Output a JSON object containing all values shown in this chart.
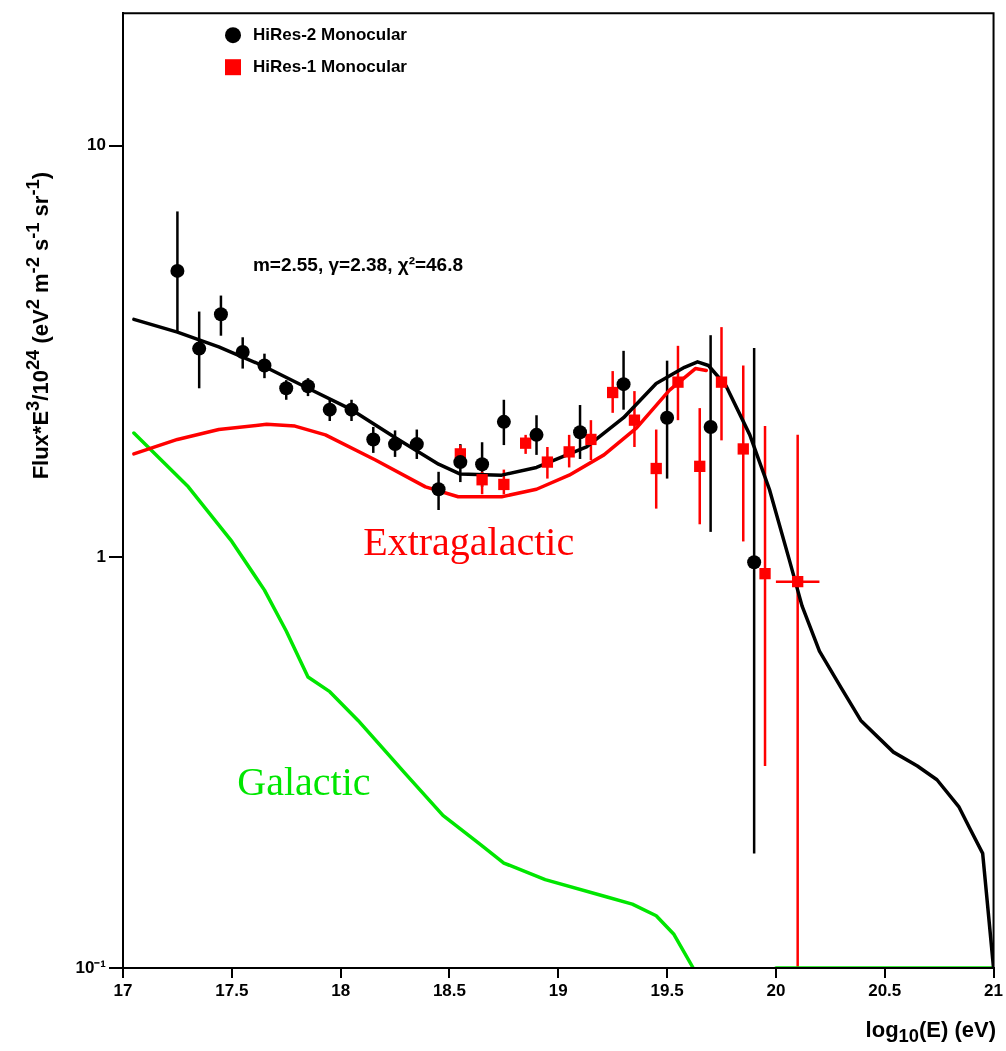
{
  "chart_data": {
    "type": "scatter",
    "xlabel": "log$_{10}$(E) (eV)",
    "ylabel": "Flux*E$^{3}$/10$^{24}$ (eV$^{2}$ m$^{-2}$ s$^{-1}$ sr$^{-1}$)",
    "log": "y",
    "xlim": [
      17,
      21
    ],
    "ylim": [
      0.1,
      21
    ],
    "xticks": [
      17,
      17.5,
      18,
      18.5,
      19,
      19.5,
      20,
      20.5,
      21
    ],
    "yticks": [
      {
        "value": 0.1,
        "label": "10⁻¹"
      },
      1,
      10
    ],
    "legend": "top left",
    "annotations": [
      "m=2.55, γ=2.38, χ²=46.8"
    ],
    "series": [
      {
        "name": "HiRes-2 Monocular",
        "marker": "circle",
        "color": "#000000",
        "x": [
          17.25,
          17.35,
          17.45,
          17.55,
          17.65,
          17.75,
          17.85,
          17.95,
          18.05,
          18.15,
          18.25,
          18.35,
          18.45,
          18.55,
          18.65,
          18.75,
          18.9,
          19.1,
          19.3,
          19.5,
          19.7,
          19.9
        ],
        "values": [
          4.96,
          3.21,
          3.89,
          3.15,
          2.92,
          2.57,
          2.6,
          2.28,
          2.28,
          1.93,
          1.88,
          1.88,
          1.46,
          1.7,
          1.68,
          2.13,
          1.98,
          2.01,
          2.63,
          2.18,
          2.07,
          0.97
        ],
        "errors": [
          [
            3.54,
            6.92
          ],
          [
            2.57,
            3.95
          ],
          [
            3.45,
            4.32
          ],
          [
            2.87,
            3.42
          ],
          [
            2.72,
            3.12
          ],
          [
            2.41,
            2.69
          ],
          [
            2.46,
            2.72
          ],
          [
            2.14,
            2.41
          ],
          [
            2.14,
            2.41
          ],
          [
            1.79,
            2.07
          ],
          [
            1.75,
            2.03
          ],
          [
            1.73,
            2.04
          ],
          [
            1.3,
            1.61
          ],
          [
            1.52,
            1.88
          ],
          [
            1.48,
            1.9
          ],
          [
            1.87,
            2.41
          ],
          [
            1.77,
            2.21
          ],
          [
            1.73,
            2.34
          ],
          [
            2.28,
            3.17
          ],
          [
            1.55,
            3.0
          ],
          [
            1.15,
            3.46
          ],
          [
            0.19,
            3.22
          ]
        ]
      },
      {
        "name": "HiRes-1 Monocular",
        "marker": "square",
        "color": "#ff0000",
        "x": [
          18.55,
          18.65,
          18.75,
          18.85,
          18.95,
          19.05,
          19.15,
          19.25,
          19.35,
          19.45,
          19.55,
          19.65,
          19.75,
          19.85,
          19.95,
          20.1
        ],
        "values": [
          1.78,
          1.54,
          1.5,
          1.89,
          1.7,
          1.8,
          1.93,
          2.51,
          2.15,
          1.64,
          2.66,
          1.66,
          2.66,
          1.83,
          0.91,
          0.87
        ],
        "errors": [
          [
            1.65,
            1.87
          ],
          [
            1.42,
            1.61
          ],
          [
            1.42,
            1.63
          ],
          [
            1.78,
            1.98
          ],
          [
            1.55,
            1.85
          ],
          [
            1.65,
            1.98
          ],
          [
            1.72,
            2.15
          ],
          [
            2.24,
            2.83
          ],
          [
            1.85,
            2.53
          ],
          [
            1.31,
            2.04
          ],
          [
            2.15,
            3.26
          ],
          [
            1.2,
            2.3
          ],
          [
            1.92,
            3.62
          ],
          [
            1.09,
            2.92
          ],
          [
            0.31,
            2.08
          ],
          [
            0.1,
            1.98
          ]
        ],
        "xerrors": [
          null,
          null,
          null,
          null,
          null,
          null,
          null,
          null,
          null,
          null,
          null,
          null,
          null,
          null,
          null,
          0.1
        ]
      },
      {
        "type": "line",
        "color": "#000000",
        "x": [
          17.05,
          17.25,
          17.44,
          17.64,
          17.85,
          18.05,
          18.25,
          18.45,
          18.55,
          18.74,
          18.9,
          19.13,
          19.3,
          19.45,
          19.58,
          19.64,
          19.69,
          19.77,
          19.88,
          19.97,
          20.06,
          20.12,
          20.2,
          20.3,
          20.39,
          20.54,
          20.65,
          20.74,
          20.84,
          20.89,
          20.95,
          21
        ],
        "values": [
          3.78,
          3.52,
          3.24,
          2.92,
          2.57,
          2.28,
          1.95,
          1.68,
          1.59,
          1.58,
          1.65,
          1.85,
          2.18,
          2.64,
          2.89,
          2.98,
          2.92,
          2.61,
          1.98,
          1.46,
          0.99,
          0.76,
          0.59,
          0.48,
          0.4,
          0.335,
          0.31,
          0.287,
          0.247,
          0.219,
          0.19,
          0.1
        ]
      },
      {
        "name": "Extragalactic",
        "type": "line",
        "color": "#ff0000",
        "x": [
          17.05,
          17.25,
          17.44,
          17.66,
          17.79,
          17.93,
          18.16,
          18.39,
          18.54,
          18.74,
          18.9,
          19.05,
          19.21,
          19.36,
          19.51,
          19.63,
          19.68
        ],
        "values": [
          1.78,
          1.93,
          2.04,
          2.1,
          2.08,
          1.98,
          1.72,
          1.48,
          1.4,
          1.4,
          1.46,
          1.58,
          1.77,
          2.06,
          2.54,
          2.87,
          2.84
        ]
      },
      {
        "name": "Galactic",
        "type": "line",
        "color": "#00e600",
        "x": [
          17.05,
          17.3,
          17.5,
          17.65,
          17.75,
          17.85,
          17.95,
          18.08,
          18.29,
          18.47,
          18.64,
          18.75,
          18.94,
          19.22,
          19.34,
          19.45,
          19.53,
          19.62,
          19.8,
          20,
          21
        ],
        "values": [
          2.0,
          1.48,
          1.09,
          0.83,
          0.66,
          0.51,
          0.47,
          0.4,
          0.3,
          0.235,
          0.2,
          0.18,
          0.164,
          0.149,
          0.143,
          0.134,
          0.121,
          0.1,
          null,
          0.1,
          0.1
        ]
      }
    ]
  }
}
